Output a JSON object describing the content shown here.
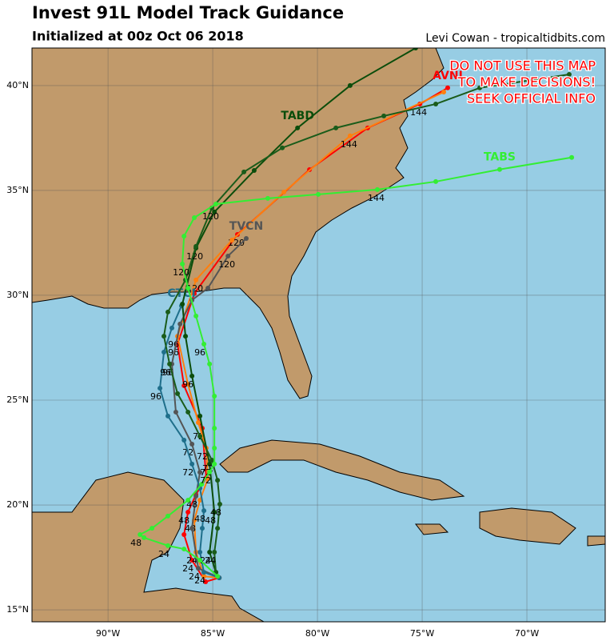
{
  "chart_data": {
    "type": "map",
    "title": "Invest 91L Model Track Guidance",
    "subtitle": "Initialized at 00z Oct 06 2018",
    "credit": "Levi Cowan - tropicaltidbits.com",
    "warning": [
      "DO NOT USE THIS MAP",
      "TO MAKE DECISIONS!",
      "SEEK OFFICIAL INFO"
    ],
    "xlim": [
      -93.63,
      -66.26
    ],
    "ylim": [
      14.43,
      41.79
    ],
    "xticks": [
      {
        "value": -90,
        "label": "90°W"
      },
      {
        "value": -85,
        "label": "85°W"
      },
      {
        "value": -80,
        "label": "80°W"
      },
      {
        "value": -75,
        "label": "75°W"
      },
      {
        "value": -70,
        "label": "70°W"
      }
    ],
    "yticks": [
      {
        "value": 15,
        "label": "15°N"
      },
      {
        "value": 20,
        "label": "20°N"
      },
      {
        "value": 25,
        "label": "25°N"
      },
      {
        "value": 30,
        "label": "30°N"
      },
      {
        "value": 35,
        "label": "35°N"
      },
      {
        "value": 40,
        "label": "40°N"
      }
    ],
    "grid": true,
    "series": [
      {
        "name": "AVNI",
        "color": "#ff0000",
        "x": [
          -84.69,
          -85.34,
          -85.99,
          -86.37,
          -86.18,
          -85.8,
          -85.31,
          -85.5,
          -86.37,
          -86.68,
          -85.88,
          -83.82,
          -80.38,
          -77.6,
          -75.11,
          -73.78
        ],
        "y": [
          16.53,
          16.34,
          17.37,
          18.59,
          19.66,
          20.5,
          21.3,
          23.66,
          25.69,
          27.67,
          30.08,
          32.9,
          35.99,
          37.98,
          39.12,
          39.89
        ],
        "hours": [
          null,
          null,
          24,
          null,
          48,
          null,
          null,
          72,
          null,
          96,
          null,
          120,
          null,
          null,
          144,
          null
        ]
      },
      {
        "color": "#ff7f0e",
        "x": [
          -84.69,
          -85.42,
          -85.8,
          -85.88,
          -85.61,
          -85.23,
          -85.31,
          -85.69,
          -86.18,
          -86.68,
          -85.8,
          -84.08,
          -81.6,
          -78.44,
          -73.97
        ],
        "y": [
          16.53,
          16.6,
          17.75,
          19.27,
          20.23,
          21.26,
          22.71,
          23.93,
          25.76,
          28.05,
          30.73,
          32.63,
          34.92,
          37.6,
          39.69
        ],
        "hours": [
          null,
          null,
          24,
          48,
          null,
          null,
          72,
          null,
          null,
          96,
          120,
          null,
          null,
          144,
          null
        ]
      },
      {
        "name": "TVCN",
        "color": "#555555",
        "x": [
          -84.69,
          -85.69,
          -85.99,
          -85.8,
          -85.61,
          -85.99,
          -86.76,
          -86.95,
          -86.56,
          -85.99,
          -85.23,
          -84.27,
          -83.4
        ],
        "y": [
          16.53,
          16.98,
          18.89,
          20.42,
          21.56,
          22.9,
          24.43,
          26.72,
          28.63,
          29.77,
          30.34,
          31.87,
          32.71
        ],
        "hours": [
          null,
          24,
          null,
          48,
          null,
          72,
          null,
          96,
          null,
          null,
          null,
          120,
          null
        ]
      },
      {
        "name": "CTCI",
        "color": "#1f6f8b",
        "x": [
          -84.69,
          -85.42,
          -85.61,
          -85.5,
          -85.42,
          -85.61,
          -85.99,
          -86.37,
          -87.14,
          -87.52,
          -87.33,
          -86.95,
          -86.49
        ],
        "y": [
          16.53,
          16.79,
          17.75,
          18.89,
          19.73,
          20.8,
          21.95,
          23.09,
          24.24,
          25.57,
          27.29,
          28.44,
          29.5
        ],
        "hours": [
          null,
          24,
          null,
          null,
          48,
          null,
          72,
          null,
          null,
          96,
          null,
          null,
          null
        ]
      },
      {
        "name": "TABD",
        "color": "#0b4d0b",
        "x": [
          -84.85,
          -85.15,
          -84.92,
          -85.15,
          -85.61,
          -85.99,
          -86.3,
          -86.45,
          -85.8,
          -84.92,
          -83.02,
          -80.95,
          -78.44,
          -75.31
        ],
        "y": [
          16.79,
          17.75,
          19.66,
          21.95,
          24.24,
          26.15,
          28.05,
          29.58,
          32.25,
          33.97,
          35.95,
          37.98,
          40.0,
          41.79
        ],
        "hours": [
          null,
          24,
          48,
          72,
          null,
          96,
          null,
          null,
          120,
          null,
          null,
          null,
          null,
          null
        ]
      },
      {
        "color": "#1a5c1a",
        "x": [
          -84.85,
          -84.92,
          -84.77,
          -84.66,
          -84.77,
          -85.04,
          -85.61,
          -86.18,
          -86.68,
          -87.06,
          -87.33,
          -87.14,
          -86.3,
          -85.8,
          -85.04,
          -83.51,
          -81.68,
          -79.12,
          -76.83,
          -74.35,
          -72.25,
          -67.98
        ],
        "y": [
          16.79,
          17.75,
          18.89,
          20.04,
          21.18,
          22.14,
          23.28,
          24.43,
          25.31,
          26.72,
          28.05,
          29.2,
          30.73,
          32.33,
          34.16,
          35.88,
          37.03,
          37.98,
          38.55,
          39.12,
          39.89,
          40.53
        ],
        "hours": [
          null,
          24,
          null,
          48,
          null,
          72,
          null,
          null,
          null,
          96,
          null,
          null,
          null,
          null,
          120,
          null,
          null,
          null,
          null,
          null,
          null,
          null
        ]
      },
      {
        "name": "TABS",
        "color": "#33ee33",
        "x": [
          -84.77,
          -85.61,
          -86.37,
          -87.14,
          -88.28,
          -88.47,
          -87.9,
          -87.14,
          -86.18,
          -85.53,
          -85.15,
          -84.92,
          -84.92,
          -84.92,
          -84.92,
          -85.15,
          -85.42,
          -85.8,
          -86.18,
          -86.45,
          -86.37,
          -85.88,
          -84.85,
          -82.37,
          -79.96,
          -77.14,
          -74.35,
          -71.3,
          -67.86
        ],
        "y": [
          16.6,
          17.37,
          17.9,
          18.06,
          18.44,
          18.59,
          18.89,
          19.47,
          20.23,
          20.99,
          21.57,
          21.95,
          22.71,
          23.66,
          25.19,
          26.72,
          27.67,
          29.01,
          30.34,
          31.49,
          32.82,
          33.7,
          34.35,
          34.62,
          34.81,
          35.04,
          35.42,
          36.0,
          36.57
        ],
        "hours": [
          null,
          null,
          null,
          24,
          null,
          48,
          null,
          null,
          null,
          null,
          72,
          null,
          null,
          null,
          null,
          null,
          96,
          null,
          null,
          120,
          null,
          null,
          null,
          null,
          null,
          144,
          null,
          null,
          null
        ]
      }
    ]
  }
}
